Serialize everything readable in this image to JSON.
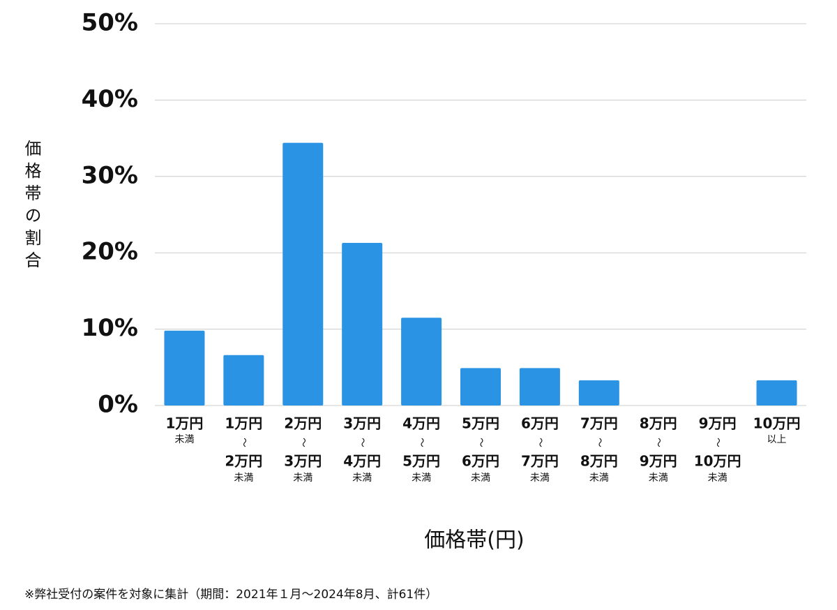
{
  "chart_data": {
    "type": "bar",
    "y_label": "価格帯の割合",
    "x_label": "価格帯(円)",
    "note": "※弊社受付の案件を対象に集計（期間：2021年１月～2024年8月、計61件）",
    "categories": [
      [
        "1万円",
        "未満"
      ],
      [
        "1万円",
        "〜",
        "2万円",
        "未満"
      ],
      [
        "2万円",
        "〜",
        "3万円",
        "未満"
      ],
      [
        "3万円",
        "〜",
        "4万円",
        "未満"
      ],
      [
        "4万円",
        "〜",
        "5万円",
        "未満"
      ],
      [
        "5万円",
        "〜",
        "6万円",
        "未満"
      ],
      [
        "6万円",
        "〜",
        "7万円",
        "未満"
      ],
      [
        "7万円",
        "〜",
        "8万円",
        "未満"
      ],
      [
        "8万円",
        "〜",
        "9万円",
        "未満"
      ],
      [
        "9万円",
        "〜",
        "10万円",
        "未満"
      ],
      [
        "10万円",
        "以上"
      ]
    ],
    "values": [
      9.8,
      6.6,
      34.4,
      21.3,
      11.5,
      4.9,
      4.9,
      3.3,
      0,
      0,
      3.3
    ],
    "color": "#2a93e3",
    "ylim": [
      0,
      50
    ],
    "yticks": [
      {
        "value": 0,
        "label": "0%"
      },
      {
        "value": 10,
        "label": "10%"
      },
      {
        "value": 20,
        "label": "20%"
      },
      {
        "value": 30,
        "label": "30%"
      },
      {
        "value": 40,
        "label": "40%"
      },
      {
        "value": 50,
        "label": "50%"
      }
    ],
    "grid": true
  }
}
